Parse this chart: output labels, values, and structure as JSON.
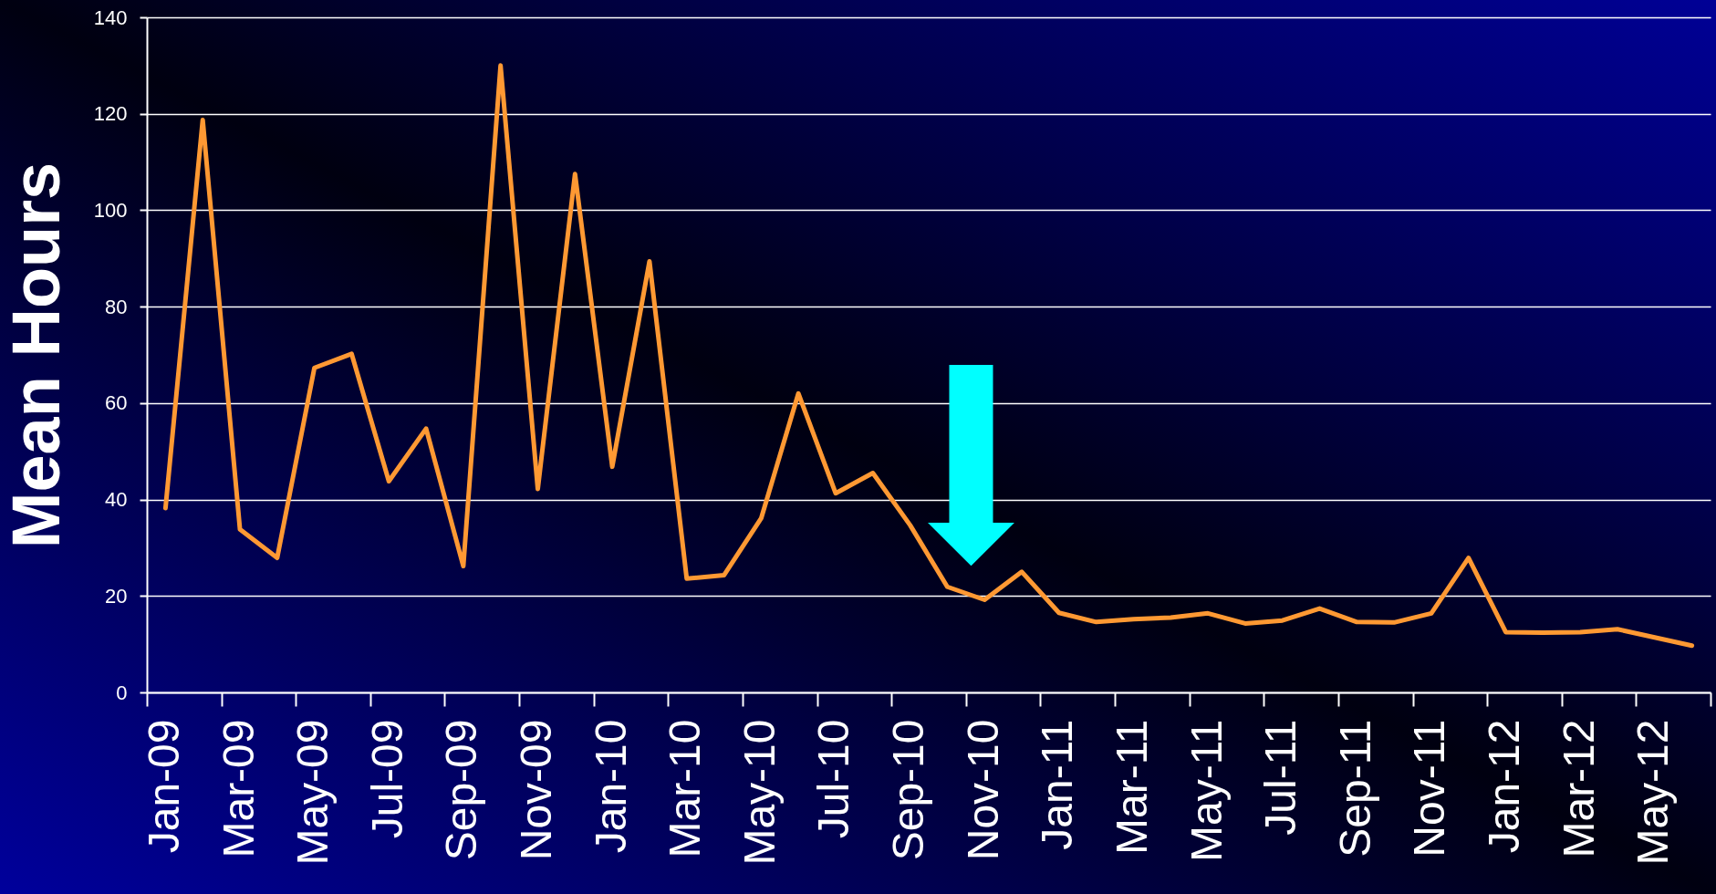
{
  "chart_data": {
    "type": "line",
    "ylabel": "Mean Hours",
    "categories": [
      "Jan-09",
      null,
      "Mar-09",
      null,
      "May-09",
      null,
      "Jul-09",
      null,
      "Sep-09",
      null,
      "Nov-09",
      null,
      "Jan-10",
      null,
      "Mar-10",
      null,
      "May-10",
      null,
      "Jul-10",
      null,
      "Sep-10",
      null,
      "Nov-10",
      null,
      "Jan-11",
      null,
      "Mar-11",
      null,
      "May-11",
      null,
      "Jul-11",
      null,
      "Sep-11",
      null,
      "Nov-11",
      null,
      "Jan-12",
      null,
      "Mar-12",
      null,
      "May-12",
      null
    ],
    "values": [
      38.2,
      118.7,
      33.8,
      27.9,
      67.3,
      70.2,
      43.8,
      54.7,
      26.2,
      130.0,
      42.2,
      107.5,
      46.8,
      89.4,
      23.6,
      24.3,
      36.1,
      62.0,
      41.3,
      45.5,
      34.7,
      21.9,
      19.2,
      25.0,
      16.5,
      14.6,
      15.2,
      15.5,
      16.4,
      14.3,
      14.9,
      17.4,
      14.6,
      14.5,
      16.4,
      27.9,
      12.5,
      12.4,
      12.5,
      13.1,
      11.4,
      9.7
    ],
    "color": "#ff9933",
    "ylim": [
      0,
      140
    ],
    "yticks": [
      0,
      20,
      40,
      60,
      80,
      100,
      120,
      140
    ],
    "grid": "y",
    "line_style": "solid"
  }
}
